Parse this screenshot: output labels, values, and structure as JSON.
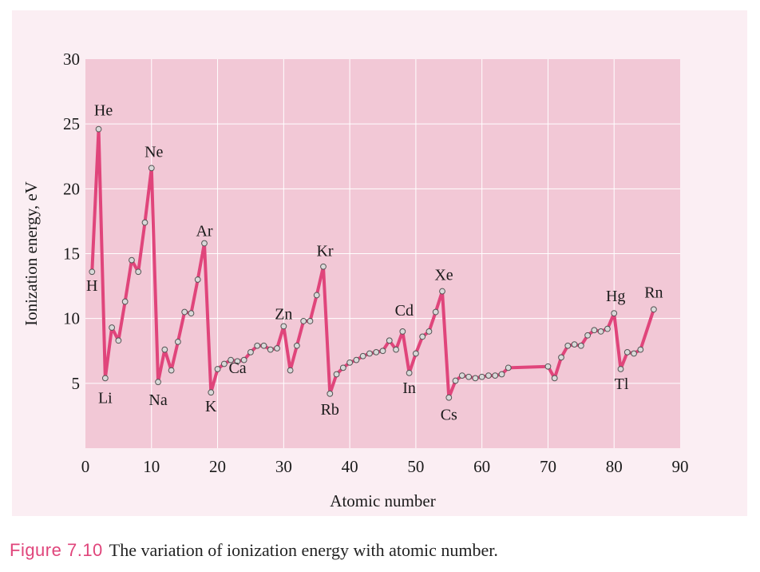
{
  "chart_data": {
    "type": "line",
    "xlabel": "Atomic number",
    "ylabel": "Ionization energy, eV",
    "xlim": [
      0,
      90
    ],
    "ylim": [
      0,
      30
    ],
    "xticks": [
      0,
      10,
      20,
      30,
      40,
      50,
      60,
      70,
      80,
      90
    ],
    "yticks": [
      5,
      10,
      15,
      20,
      25,
      30
    ],
    "grid": true,
    "colors": {
      "line": "#e0457b",
      "background": "#f2c8d6",
      "frame": "#fbeef3",
      "marker_fill": "#d9d9d9",
      "marker_stroke": "#555555"
    },
    "series": [
      {
        "x": [
          1,
          2,
          3,
          4,
          5,
          6,
          7,
          8,
          9,
          10,
          11,
          12,
          13,
          14,
          15,
          16,
          17,
          18,
          19,
          20,
          21,
          22,
          23,
          24,
          25,
          26,
          27,
          28,
          29,
          30,
          31,
          32,
          33,
          34,
          35,
          36,
          37,
          38,
          39,
          40,
          41,
          42,
          43,
          44,
          45,
          46,
          47,
          48,
          49,
          50,
          51,
          52,
          53,
          54,
          55,
          56,
          57,
          58,
          59,
          60,
          61,
          62,
          63,
          64,
          70,
          71,
          72,
          73,
          74,
          75,
          76,
          77,
          78,
          79,
          80,
          81,
          82,
          83,
          84,
          86
        ],
        "y": [
          13.6,
          24.6,
          5.4,
          9.3,
          8.3,
          11.3,
          14.5,
          13.6,
          17.4,
          21.6,
          5.1,
          7.6,
          6.0,
          8.2,
          10.5,
          10.4,
          13.0,
          15.8,
          4.3,
          6.1,
          6.5,
          6.8,
          6.7,
          6.8,
          7.4,
          7.9,
          7.9,
          7.6,
          7.7,
          9.4,
          6.0,
          7.9,
          9.8,
          9.8,
          11.8,
          14.0,
          4.2,
          5.7,
          6.2,
          6.6,
          6.8,
          7.1,
          7.3,
          7.4,
          7.5,
          8.3,
          7.6,
          9.0,
          5.8,
          7.3,
          8.6,
          9.0,
          10.5,
          12.1,
          3.9,
          5.2,
          5.6,
          5.5,
          5.4,
          5.5,
          5.6,
          5.6,
          5.7,
          6.2,
          6.3,
          5.4,
          7.0,
          7.9,
          8.0,
          7.9,
          8.7,
          9.1,
          9.0,
          9.2,
          10.4,
          6.1,
          7.4,
          7.3,
          7.6,
          10.7
        ]
      }
    ],
    "annotations": [
      {
        "text": "H",
        "x": 1,
        "y": 13.6
      },
      {
        "text": "He",
        "x": 2,
        "y": 24.6
      },
      {
        "text": "Li",
        "x": 3,
        "y": 5.4
      },
      {
        "text": "Ne",
        "x": 10,
        "y": 21.6
      },
      {
        "text": "Na",
        "x": 11,
        "y": 5.1
      },
      {
        "text": "Ar",
        "x": 18,
        "y": 15.8
      },
      {
        "text": "K",
        "x": 19,
        "y": 4.3
      },
      {
        "text": "Ca",
        "x": 20,
        "y": 6.1
      },
      {
        "text": "Zn",
        "x": 30,
        "y": 9.4
      },
      {
        "text": "Kr",
        "x": 36,
        "y": 14.0
      },
      {
        "text": "Rb",
        "x": 37,
        "y": 4.2
      },
      {
        "text": "Cd",
        "x": 48,
        "y": 9.0
      },
      {
        "text": "In",
        "x": 49,
        "y": 5.8
      },
      {
        "text": "Xe",
        "x": 54,
        "y": 12.1
      },
      {
        "text": "Cs",
        "x": 55,
        "y": 3.9
      },
      {
        "text": "Hg",
        "x": 80,
        "y": 10.4
      },
      {
        "text": "Tl",
        "x": 81,
        "y": 6.1
      },
      {
        "text": "Rn",
        "x": 86,
        "y": 10.7
      }
    ]
  },
  "caption": {
    "label": "Figure  7.10",
    "text": "The variation of ionization energy with atomic number."
  }
}
